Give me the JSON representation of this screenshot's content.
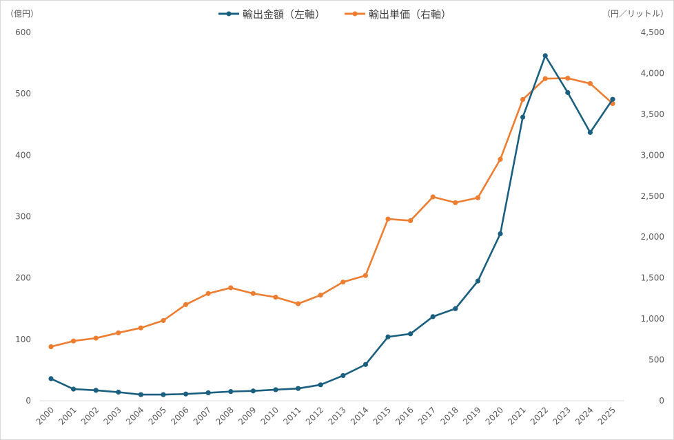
{
  "chart_data": {
    "type": "line",
    "title": "",
    "categories": [
      "2000",
      "2001",
      "2002",
      "2003",
      "2004",
      "2005",
      "2006",
      "2007",
      "2008",
      "2009",
      "2010",
      "2011",
      "2012",
      "2013",
      "2014",
      "2015",
      "2016",
      "2017",
      "2018",
      "2019",
      "2020",
      "2021",
      "2022",
      "2023",
      "2024",
      "2025"
    ],
    "left_axis": {
      "unit_label": "（億円）",
      "ylim": [
        0,
        600
      ],
      "ticks": [
        "0",
        "100",
        "200",
        "300",
        "400",
        "500",
        "600"
      ]
    },
    "right_axis": {
      "unit_label": "（円／リットル）",
      "ylim": [
        0,
        4500
      ],
      "ticks": [
        "0",
        "500",
        "1,000",
        "1,500",
        "2,000",
        "2,500",
        "3,000",
        "3,500",
        "4,000",
        "4,500"
      ]
    },
    "series": [
      {
        "name": "輸出金額（左軸）",
        "axis": "left",
        "color": "#1a5f7f",
        "values": [
          36,
          19,
          17,
          14,
          10,
          10,
          11,
          13,
          15,
          16,
          18,
          20,
          26,
          41,
          59,
          104,
          109,
          137,
          150,
          195,
          272,
          462,
          562,
          502,
          437,
          491
        ]
      },
      {
        "name": "輸出単価（右軸）",
        "axis": "right",
        "color": "#ed7d31",
        "values": [
          660,
          730,
          765,
          830,
          890,
          980,
          1175,
          1310,
          1380,
          1310,
          1265,
          1185,
          1290,
          1450,
          1530,
          2220,
          2200,
          2490,
          2420,
          2480,
          2950,
          3680,
          3935,
          3940,
          3875,
          3630
        ]
      }
    ],
    "grid": false,
    "legend_position": "top-center"
  }
}
